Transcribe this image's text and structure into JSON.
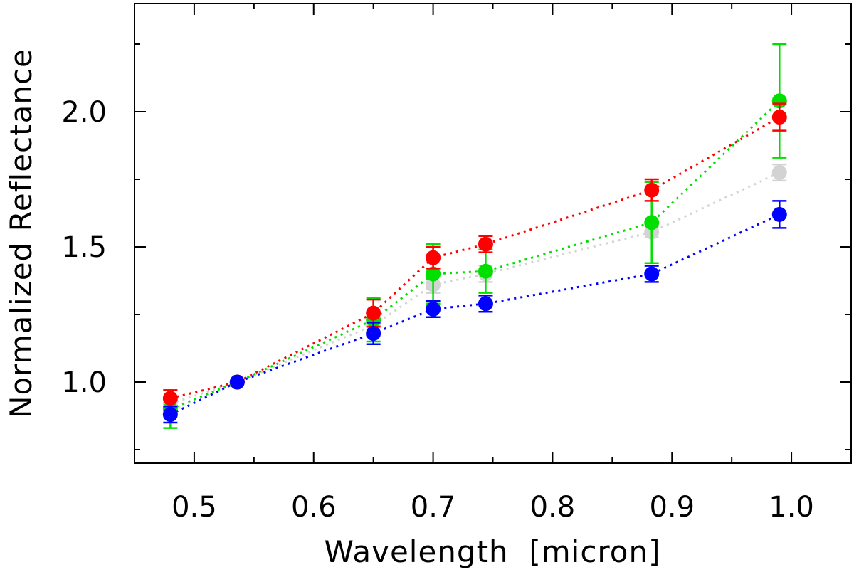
{
  "chart_data": {
    "type": "scatter",
    "title": "",
    "xlabel": "Wavelength  [micron]",
    "ylabel": "Normalized Reflectance",
    "xlim": [
      0.45,
      1.05
    ],
    "ylim": [
      0.7,
      2.4
    ],
    "xticks": [
      0.5,
      0.6,
      0.7,
      0.8,
      0.9,
      1.0
    ],
    "xtick_labels": [
      "0.5",
      "0.6",
      "0.7",
      "0.8",
      "0.9",
      "1.0"
    ],
    "xminor_step": 0.05,
    "yticks": [
      1.0,
      1.5,
      2.0
    ],
    "ytick_labels": [
      "1.0",
      "1.5",
      "2.0"
    ],
    "yminor_step": 0.25,
    "grid": false,
    "series": [
      {
        "name": "gray",
        "color": "#d3d3d3",
        "x": [
          0.48,
          0.536,
          0.65,
          0.7,
          0.744,
          0.883,
          0.99
        ],
        "y": [
          0.92,
          1.0,
          1.21,
          1.36,
          1.4,
          1.555,
          1.775
        ],
        "err": [
          0.02,
          0.0,
          0.02,
          0.03,
          0.03,
          0.02,
          0.03
        ]
      },
      {
        "name": "green",
        "color": "#00e000",
        "x": [
          0.48,
          0.536,
          0.65,
          0.7,
          0.744,
          0.883,
          0.99
        ],
        "y": [
          0.9,
          1.0,
          1.23,
          1.4,
          1.41,
          1.59,
          2.04
        ],
        "err": [
          0.07,
          0.0,
          0.08,
          0.11,
          0.08,
          0.15,
          0.21
        ]
      },
      {
        "name": "red",
        "color": "#ff0000",
        "x": [
          0.48,
          0.536,
          0.65,
          0.7,
          0.744,
          0.883,
          0.99
        ],
        "y": [
          0.94,
          1.0,
          1.255,
          1.46,
          1.51,
          1.71,
          1.98
        ],
        "err": [
          0.03,
          0.0,
          0.05,
          0.04,
          0.03,
          0.04,
          0.05
        ]
      },
      {
        "name": "blue",
        "color": "#0000ff",
        "x": [
          0.48,
          0.536,
          0.65,
          0.7,
          0.744,
          0.883,
          0.99
        ],
        "y": [
          0.88,
          1.0,
          1.18,
          1.27,
          1.29,
          1.4,
          1.62
        ],
        "err": [
          0.03,
          0.0,
          0.04,
          0.03,
          0.03,
          0.03,
          0.05
        ]
      }
    ]
  }
}
